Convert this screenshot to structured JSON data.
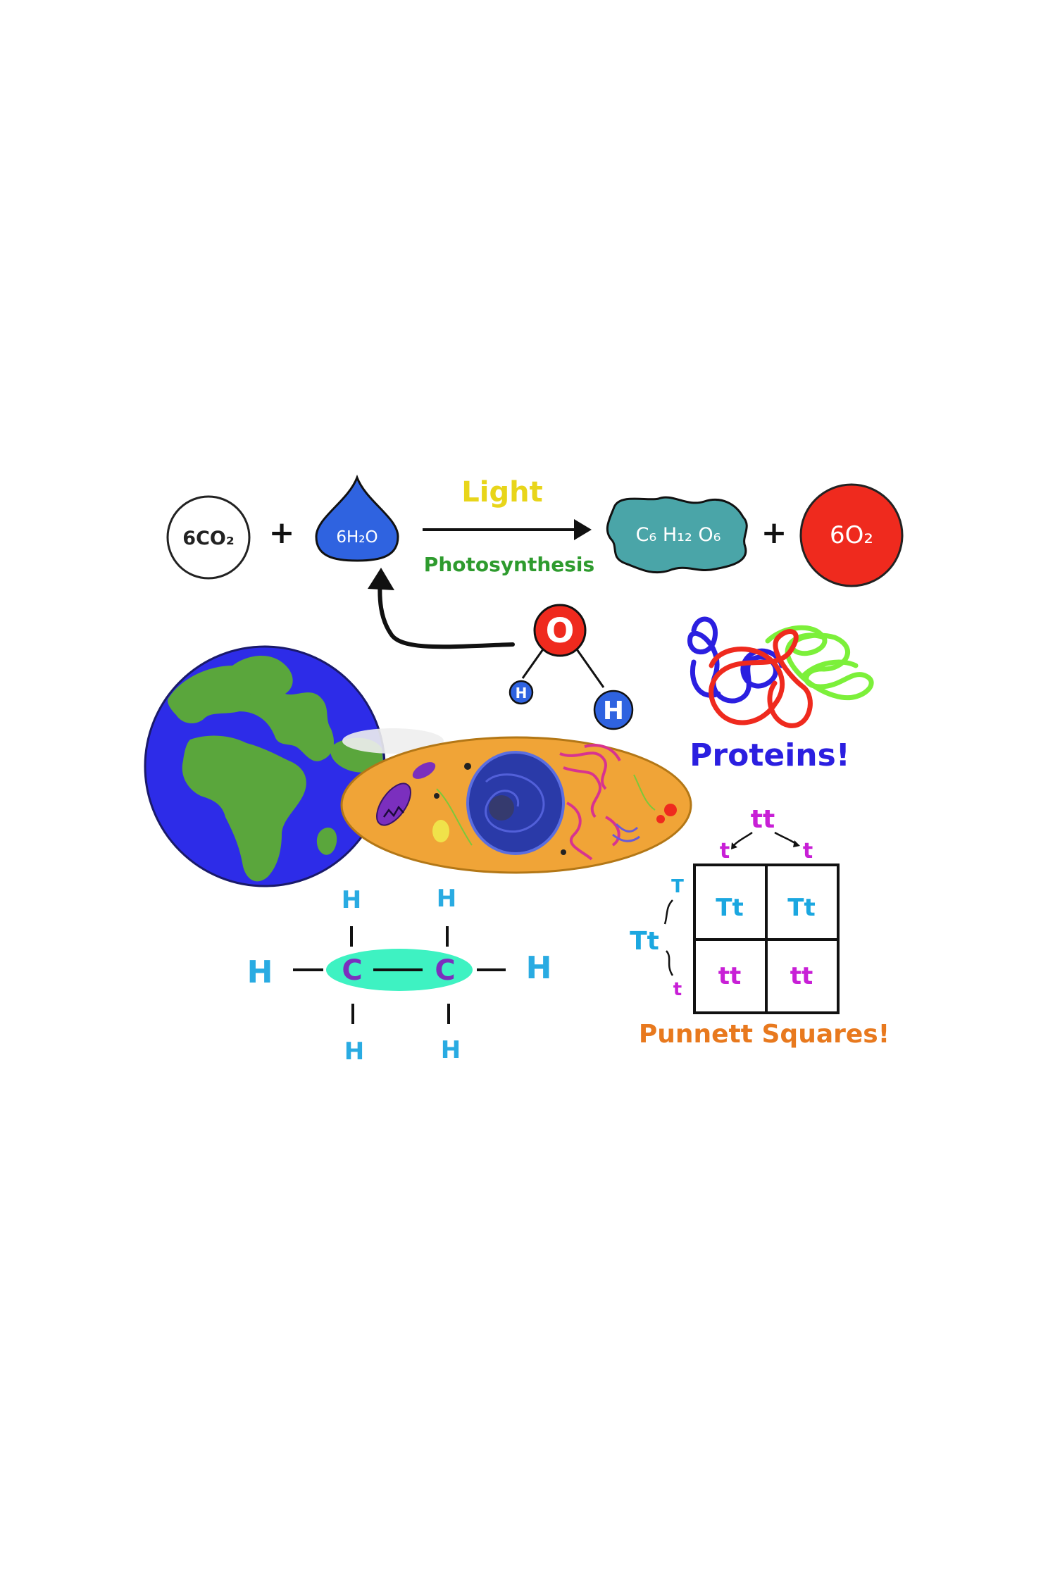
{
  "equation": {
    "reactant1": "6CO₂",
    "plus1": "+",
    "reactant2": "6H₂O",
    "condition": "Light",
    "process": "Photosynthesis",
    "product1": "C₆ H₁₂ O₆",
    "plus2": "+",
    "product2": "6O₂"
  },
  "water_molecule": {
    "oxygen": "O",
    "hydrogen_left": "H",
    "hydrogen_right": "H"
  },
  "proteins": {
    "label": "Proteins!"
  },
  "ethane": {
    "carbon_left": "C",
    "carbon_right": "C",
    "h_top_left": "H",
    "h_top_right": "H",
    "h_left": "H",
    "h_right": "H",
    "h_bottom_left": "H",
    "h_bottom_right": "H"
  },
  "punnett": {
    "top_parent": "tt",
    "top_allele_left": "t",
    "top_allele_right": "t",
    "side_parent": "Tt",
    "side_allele_top": "T",
    "side_allele_bottom": "t",
    "cells": [
      "Tt",
      "Tt",
      "tt",
      "tt"
    ],
    "label": "Punnett Squares!"
  },
  "colors": {
    "earth_ocean": "#2d2ce8",
    "earth_land": "#5aa63c",
    "cell_body": "#f0a437",
    "nucleus": "#2a3aa8",
    "hydrogen_blue": "#29abe2",
    "ethane_bond": "#3ef2c2",
    "carbon_purple": "#7b2fbe",
    "red": "#ef2a1e",
    "green_text": "#2e9b2e",
    "yellow_text": "#e8d51a",
    "orange_text": "#e8791e",
    "magenta": "#c81fd6",
    "cyan": "#1ba7e0",
    "protein_blue": "#2b1fe0",
    "glucose": "#4aa5a8"
  }
}
